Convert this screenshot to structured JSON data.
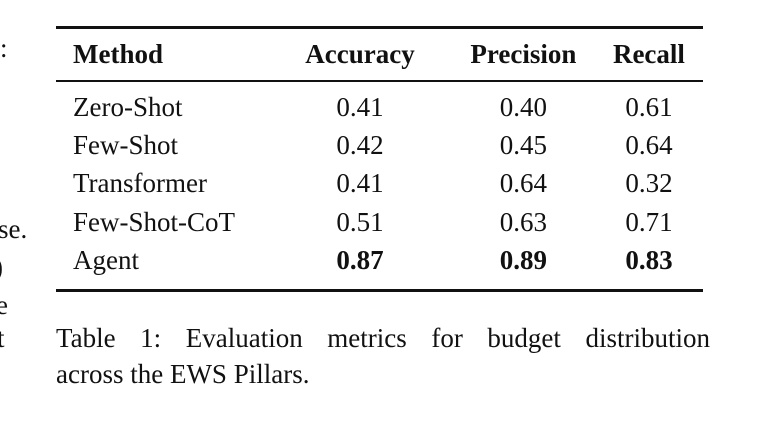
{
  "left_fragments": [
    ":",
    "se.",
    ")",
    "e",
    "t"
  ],
  "table": {
    "headers": [
      "Method",
      "Accuracy",
      "Precision",
      "Recall"
    ],
    "rows": [
      [
        "Zero-Shot",
        "0.41",
        "0.40",
        "0.61"
      ],
      [
        "Few-Shot",
        "0.42",
        "0.45",
        "0.64"
      ],
      [
        "Transformer",
        "0.41",
        "0.64",
        "0.32"
      ],
      [
        "Few-Shot-CoT",
        "0.51",
        "0.63",
        "0.71"
      ],
      [
        "Agent",
        "0.87",
        "0.89",
        "0.83"
      ]
    ]
  },
  "caption": {
    "line1": "Table 1: Evaluation metrics for budget distribution",
    "line2": "across the EWS Pillars."
  }
}
